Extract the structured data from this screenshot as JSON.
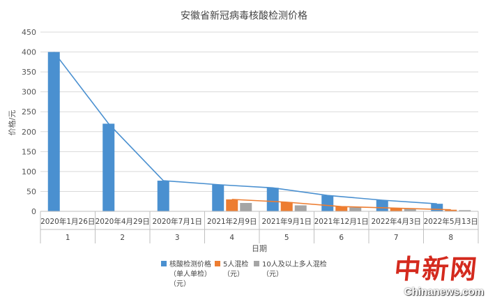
{
  "chart_data": {
    "type": "bar",
    "title": "安徽省新冠病毒核酸检测价格",
    "xlabel": "日期",
    "ylabel": "价格/元",
    "ylim": [
      0,
      450
    ],
    "yticks": [
      0,
      50,
      100,
      150,
      200,
      250,
      300,
      350,
      400,
      450
    ],
    "grid": true,
    "legend_position": "bottom",
    "categories": [
      "2020年1月26日",
      "2020年4月29日",
      "2020年7月1日",
      "2021年2月9日",
      "2021年9月1日",
      "2021年12月1日",
      "2022年4月3日",
      "2022年5月13日"
    ],
    "category_index": [
      "1",
      "2",
      "3",
      "4",
      "5",
      "6",
      "7",
      "8"
    ],
    "series": [
      {
        "name": "核酸检测价格（单人单检）（元）",
        "legend_lines": [
          "核酸检测价格",
          "（单人单检）",
          "（元）"
        ],
        "color": "#4a90d0",
        "trendline": true,
        "values": [
          400,
          220,
          77,
          67,
          59,
          40,
          28,
          19
        ]
      },
      {
        "name": "5人混检（元）",
        "legend_lines": [
          "5人混检",
          "（元）"
        ],
        "color": "#ed7d31",
        "trendline": true,
        "values": [
          null,
          null,
          null,
          30,
          23,
          12,
          8,
          4
        ]
      },
      {
        "name": "10人及以上多人混检（元）",
        "legend_lines": [
          "10人及以上多人混检",
          "（元）"
        ],
        "color": "#a5a5a5",
        "trendline": false,
        "values": [
          null,
          null,
          null,
          21,
          15,
          10,
          6,
          3
        ]
      }
    ]
  },
  "watermark": {
    "cn": "中新网",
    "en": "Chinanews.com"
  }
}
